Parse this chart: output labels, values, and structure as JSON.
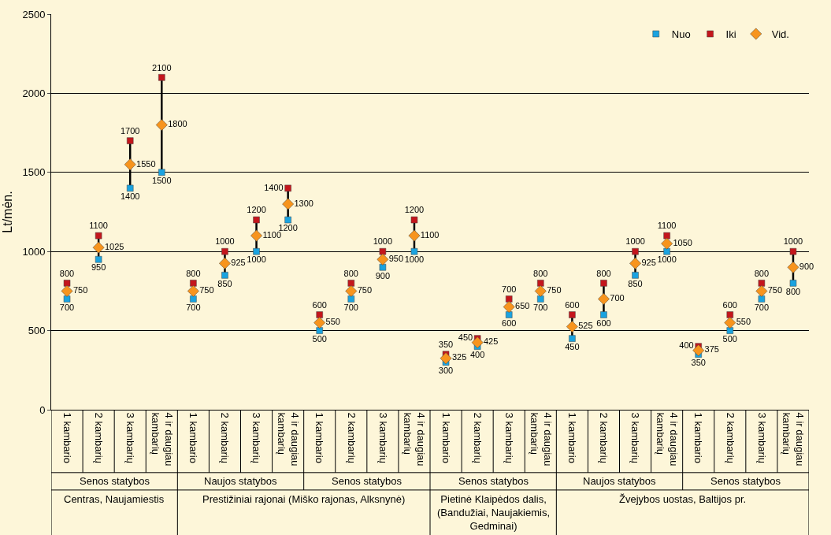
{
  "chart_data": {
    "type": "scatter",
    "ylabel": "Lt/mėn.",
    "categories": [
      "1 kambario",
      "2 kambarių",
      "3 kambarių",
      "4 ir daugiau kambarių",
      "1 kambario",
      "2 kambarių",
      "3 kambarių",
      "4 ir daugiau kambarių",
      "1 kambario",
      "2 kambarių",
      "3 kambarių",
      "4 ir daugiau kambarių",
      "1 kambario",
      "2 kambarių",
      "3 kambarių",
      "4 ir daugiau kambarių",
      "1 kambario",
      "2 kambarių",
      "3 kambarių",
      "4 ir daugiau kambarių",
      "1 kambario",
      "2 kambarių",
      "3 kambarių",
      "4 ir daugiau kambarių"
    ],
    "series": [
      {
        "name": "Nuo",
        "color": "#1aa3e0",
        "marker": "square",
        "values": [
          700,
          950,
          1400,
          1500,
          700,
          850,
          1000,
          1200,
          500,
          700,
          900,
          1000,
          300,
          400,
          600,
          700,
          450,
          600,
          850,
          1000,
          350,
          500,
          700,
          800
        ]
      },
      {
        "name": "Iki",
        "color": "#c4161c",
        "marker": "square",
        "values": [
          800,
          1100,
          1700,
          2100,
          800,
          1000,
          1200,
          1400,
          600,
          800,
          1000,
          1200,
          350,
          450,
          700,
          800,
          600,
          800,
          1000,
          1100,
          400,
          600,
          800,
          1000
        ]
      },
      {
        "name": "Vid.",
        "color": "#f7941d",
        "marker": "diamond",
        "values": [
          750,
          1025,
          1550,
          1800,
          750,
          925,
          1100,
          1300,
          550,
          750,
          950,
          1100,
          325,
          425,
          650,
          750,
          525,
          700,
          925,
          1050,
          375,
          550,
          750,
          900
        ]
      }
    ],
    "annotations": [
      "Senos statybos",
      "Naujos statybos",
      "Senos statybos",
      "Senos statybos",
      "Naujos statybos",
      "Senos statybos",
      "Centras, Naujamiestis",
      "Prestižiniai rajonai (Miško rajonas, Alksnynė)",
      "Pietinė Klaipėdos dalis, (Bandužiai, Naujakiemis, Gedminai)",
      "Žvejybos uostas, Baltijos pr."
    ],
    "ylim": [
      0,
      2500
    ],
    "yticks": [
      0,
      500,
      1000,
      1500,
      2000,
      2500
    ],
    "grid": "y",
    "legend": "top right",
    "data_labels": true
  }
}
